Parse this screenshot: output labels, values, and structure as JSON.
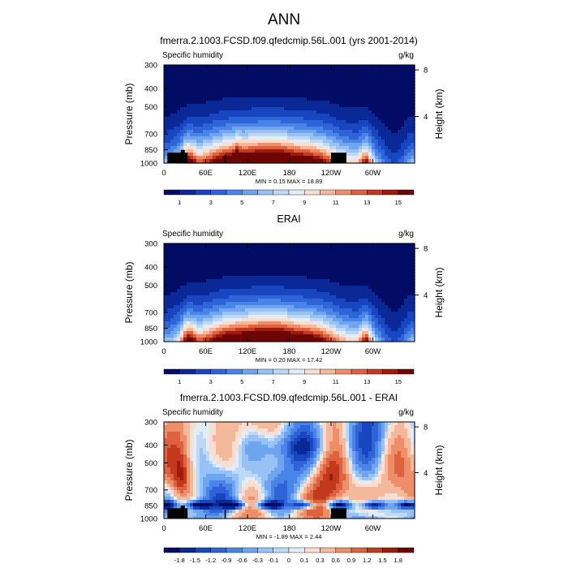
{
  "page": {
    "title": "ANN"
  },
  "colors": {
    "shades": [
      "#020c64",
      "#0a2896",
      "#1746c0",
      "#2e64d8",
      "#4a84e8",
      "#6fa4f0",
      "#97c2f6",
      "#bed9f8",
      "#e2edf7",
      "#f8ded0",
      "#f4b99b",
      "#ee8e68",
      "#dc6240",
      "#c2391e",
      "#9e1b0c",
      "#6e0505"
    ],
    "land": "#000000"
  },
  "chart_data": [
    {
      "type": "contour",
      "title": "fmerra.2.1003.FCSD.f09.qfedcmip.56L.001 (yrs 2001-2014)",
      "left_label": "Specific humidity",
      "right_label": "g/kg",
      "ylabel": "Pressure (mb)",
      "ylabel_right": "Height (km)",
      "xticks": [
        "0",
        "60E",
        "120E",
        "180",
        "120W",
        "60W"
      ],
      "xtick_values": [
        0,
        60,
        120,
        180,
        240,
        300
      ],
      "xlim": [
        0,
        360
      ],
      "yticks": [
        "300",
        "400",
        "500",
        "700",
        "850",
        "1000"
      ],
      "ytick_values": [
        300,
        400,
        500,
        700,
        850,
        1000
      ],
      "ylim": [
        1000,
        300
      ],
      "right_ticks": [
        "8",
        "4"
      ],
      "right_tick_values": [
        8,
        4
      ],
      "min_max_label": "MIN =   0.15  MAX =   18.89",
      "min": 0.15,
      "max": 18.89,
      "levels": [
        1,
        2,
        3,
        4,
        5,
        6,
        7,
        8,
        9,
        10,
        11,
        12,
        13,
        14,
        15
      ],
      "colorbar_labels": [
        "1",
        "3",
        "5",
        "7",
        "9",
        "11",
        "13",
        "15"
      ],
      "field": "humidity"
    },
    {
      "type": "contour",
      "title": "ERAI",
      "left_label": "Specific humidity",
      "right_label": "g/kg",
      "ylabel": "Pressure (mb)",
      "ylabel_right": "Height (km)",
      "xticks": [
        "0",
        "60E",
        "120E",
        "180",
        "120W",
        "60W"
      ],
      "xtick_values": [
        0,
        60,
        120,
        180,
        240,
        300
      ],
      "xlim": [
        0,
        360
      ],
      "yticks": [
        "300",
        "400",
        "500",
        "700",
        "850",
        "1000"
      ],
      "ytick_values": [
        300,
        400,
        500,
        700,
        850,
        1000
      ],
      "ylim": [
        1000,
        300
      ],
      "right_ticks": [
        "8",
        "4"
      ],
      "right_tick_values": [
        8,
        4
      ],
      "min_max_label": "MIN =   0.20  MAX =   17.42",
      "min": 0.2,
      "max": 17.42,
      "levels": [
        1,
        2,
        3,
        4,
        5,
        6,
        7,
        8,
        9,
        10,
        11,
        12,
        13,
        14,
        15
      ],
      "colorbar_labels": [
        "1",
        "3",
        "5",
        "7",
        "9",
        "11",
        "13",
        "15"
      ],
      "field": "humidity"
    },
    {
      "type": "contour",
      "title": "fmerra.2.1003.FCSD.f09.qfedcmip.56L.001 - ERAI",
      "left_label": "Specific humidity",
      "right_label": "g/kg",
      "ylabel": "Pressure (mb)",
      "ylabel_right": "Height (km)",
      "xticks": [
        "0",
        "60E",
        "120E",
        "180",
        "120W",
        "60W"
      ],
      "xtick_values": [
        0,
        60,
        120,
        180,
        240,
        300
      ],
      "xlim": [
        0,
        360
      ],
      "yticks": [
        "300",
        "400",
        "500",
        "700",
        "850",
        "1000"
      ],
      "ytick_values": [
        300,
        400,
        500,
        700,
        850,
        1000
      ],
      "ylim": [
        1000,
        300
      ],
      "right_ticks": [
        "8",
        "4"
      ],
      "right_tick_values": [
        8,
        4
      ],
      "min_max_label": "MIN =  -1.89  MAX =   2.44",
      "min": -1.89,
      "max": 2.44,
      "levels": [
        -1.8,
        -1.5,
        -1.2,
        -0.9,
        -0.6,
        -0.3,
        -0.1,
        0,
        0.1,
        0.3,
        0.6,
        0.9,
        1.2,
        1.5,
        1.8
      ],
      "colorbar_labels": [
        "-1.8",
        "-1.5",
        "-1.2",
        "-0.9",
        "-0.6",
        "-0.3",
        "-0.1",
        "0",
        "0.1",
        "0.3",
        "0.6",
        "0.9",
        "1.2",
        "1.5",
        "1.8"
      ],
      "field": "difference"
    }
  ]
}
